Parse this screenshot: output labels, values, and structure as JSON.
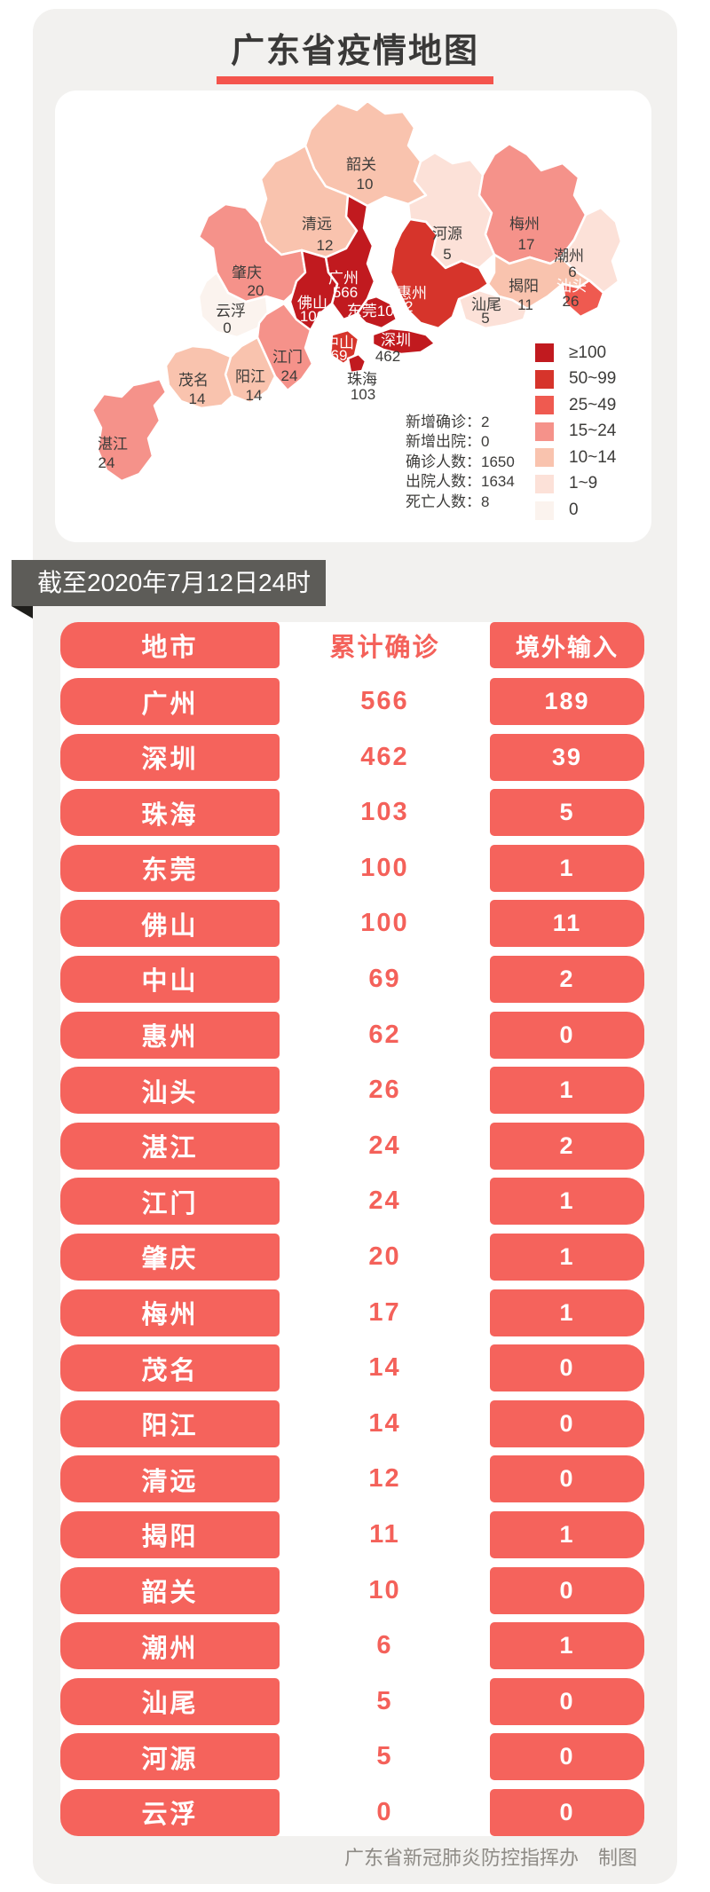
{
  "page": {
    "title": "广东省疫情地图",
    "banner": "截至2020年7月12日24时",
    "footer": "广东省新冠肺炎防控指挥办　制图",
    "accent_color": "#f4544c",
    "banner_color": "#5d5c58",
    "table_red": "#f5635c"
  },
  "map": {
    "palette": {
      "t7": "#c11a1f",
      "t6": "#d6342b",
      "t5": "#ef5a50",
      "t4": "#f5928a",
      "t3": "#f9c3ae",
      "t2": "#fce1d8",
      "t1": "#fbf3ee"
    },
    "legend": [
      {
        "label": "≥100",
        "tier": "t7"
      },
      {
        "label": "50~99",
        "tier": "t6"
      },
      {
        "label": "25~49",
        "tier": "t5"
      },
      {
        "label": "15~24",
        "tier": "t4"
      },
      {
        "label": "10~14",
        "tier": "t3"
      },
      {
        "label": "1~9",
        "tier": "t2"
      },
      {
        "label": "0",
        "tier": "t1"
      }
    ],
    "stats": [
      {
        "label": "新增确诊",
        "value": "2"
      },
      {
        "label": "新增出院",
        "value": "0"
      },
      {
        "label": "确诊人数",
        "value": "1650"
      },
      {
        "label": "出院人数",
        "value": "1634"
      },
      {
        "label": "死亡人数",
        "value": "8"
      }
    ],
    "cities": [
      {
        "id": "shaoguan",
        "name": "韶关",
        "value": "10",
        "tier": "t3",
        "nx": 345,
        "ny": 89,
        "vx": 349,
        "vy": 111,
        "name_white": false,
        "value_white": false
      },
      {
        "id": "qingyuan",
        "name": "清远",
        "value": "12",
        "tier": "t3",
        "nx": 295,
        "ny": 156,
        "vx": 304,
        "vy": 180,
        "name_white": false,
        "value_white": false
      },
      {
        "id": "heyuan",
        "name": "河源",
        "value": "5",
        "tier": "t2",
        "nx": 442,
        "ny": 167,
        "vx": 442,
        "vy": 190,
        "name_white": false,
        "value_white": false
      },
      {
        "id": "meizhou",
        "name": "梅州",
        "value": "17",
        "tier": "t4",
        "nx": 529,
        "ny": 156,
        "vx": 531,
        "vy": 179,
        "name_white": false,
        "value_white": false
      },
      {
        "id": "chaozhou",
        "name": "潮州",
        "value": "6",
        "tier": "t2",
        "nx": 579,
        "ny": 192,
        "vx": 583,
        "vy": 210,
        "name_white": false,
        "value_white": false
      },
      {
        "id": "jieyang",
        "name": "揭阳",
        "value": "11",
        "tier": "t3",
        "nx": 528,
        "ny": 226,
        "vx": 530,
        "vy": 247,
        "name_white": false,
        "value_white": false
      },
      {
        "id": "shantou",
        "name": "汕头",
        "value": "26",
        "tier": "t5",
        "nx": 582,
        "ny": 226,
        "vx": 581,
        "vy": 243,
        "name_white": true,
        "value_white": false
      },
      {
        "id": "shanwei",
        "name": "汕尾",
        "value": "5",
        "tier": "t2",
        "nx": 486,
        "ny": 247,
        "vx": 485,
        "vy": 262,
        "name_white": false,
        "value_white": false
      },
      {
        "id": "huizhou",
        "name": "惠州",
        "value": "62",
        "tier": "t6",
        "nx": 402,
        "ny": 234,
        "vx": 394,
        "vy": 249,
        "name_white": true,
        "value_white": true
      },
      {
        "id": "guangzhou",
        "name": "广州",
        "value": "566",
        "tier": "t7",
        "nx": 325,
        "ny": 217,
        "vx": 327,
        "vy": 233,
        "name_white": true,
        "value_white": true
      },
      {
        "id": "zhaoqing",
        "name": "肇庆",
        "value": "20",
        "tier": "t4",
        "nx": 216,
        "ny": 211,
        "vx": 226,
        "vy": 231,
        "name_white": false,
        "value_white": false
      },
      {
        "id": "yunfu",
        "name": "云浮",
        "value": "0",
        "tier": "t1",
        "nx": 198,
        "ny": 254,
        "vx": 194,
        "vy": 273,
        "name_white": false,
        "value_white": false
      },
      {
        "id": "foshan",
        "name": "佛山",
        "value": "100",
        "tier": "t7",
        "nx": 290,
        "ny": 245,
        "vx": 290,
        "vy": 260,
        "name_white": true,
        "value_white": true
      },
      {
        "id": "dongguan",
        "name": "东莞100",
        "value": "",
        "tier": "t7",
        "nx": 360,
        "ny": 254,
        "vx": 0,
        "vy": 0,
        "name_white": true,
        "value_white": true,
        "single_line": true
      },
      {
        "id": "zhongshan",
        "name": "中山",
        "value": "69",
        "tier": "t6",
        "nx": 320,
        "ny": 290,
        "vx": 320,
        "vy": 304,
        "name_white": true,
        "value_white": true
      },
      {
        "id": "shenzhen",
        "name": "深圳",
        "value": "462",
        "tier": "t7",
        "nx": 384,
        "ny": 287,
        "vx": 375,
        "vy": 305,
        "name_white": true,
        "value_white": false
      },
      {
        "id": "zhuhai",
        "name": "珠海",
        "value": "103",
        "tier": "t7",
        "nx": 346,
        "ny": 331,
        "vx": 347,
        "vy": 348,
        "name_white": false,
        "value_white": false
      },
      {
        "id": "jiangmen",
        "name": "江门",
        "value": "24",
        "tier": "t4",
        "nx": 262,
        "ny": 306,
        "vx": 264,
        "vy": 327,
        "name_white": false,
        "value_white": false
      },
      {
        "id": "yangjiang",
        "name": "阳江",
        "value": "14",
        "tier": "t3",
        "nx": 220,
        "ny": 328,
        "vx": 224,
        "vy": 349,
        "name_white": false,
        "value_white": false
      },
      {
        "id": "maoming",
        "name": "茂名",
        "value": "14",
        "tier": "t3",
        "nx": 156,
        "ny": 332,
        "vx": 160,
        "vy": 353,
        "name_white": false,
        "value_white": false
      },
      {
        "id": "zhanjiang",
        "name": "湛江",
        "value": "24",
        "tier": "t4",
        "nx": 65,
        "ny": 404,
        "vx": 58,
        "vy": 425,
        "name_white": false,
        "value_white": false
      }
    ]
  },
  "table": {
    "headers": [
      "地市",
      "累计确诊",
      "境外输入"
    ],
    "rows": [
      [
        "广州",
        "566",
        "189"
      ],
      [
        "深圳",
        "462",
        "39"
      ],
      [
        "珠海",
        "103",
        "5"
      ],
      [
        "东莞",
        "100",
        "1"
      ],
      [
        "佛山",
        "100",
        "11"
      ],
      [
        "中山",
        "69",
        "2"
      ],
      [
        "惠州",
        "62",
        "0"
      ],
      [
        "汕头",
        "26",
        "1"
      ],
      [
        "湛江",
        "24",
        "2"
      ],
      [
        "江门",
        "24",
        "1"
      ],
      [
        "肇庆",
        "20",
        "1"
      ],
      [
        "梅州",
        "17",
        "1"
      ],
      [
        "茂名",
        "14",
        "0"
      ],
      [
        "阳江",
        "14",
        "0"
      ],
      [
        "清远",
        "12",
        "0"
      ],
      [
        "揭阳",
        "11",
        "1"
      ],
      [
        "韶关",
        "10",
        "0"
      ],
      [
        "潮州",
        "6",
        "1"
      ],
      [
        "汕尾",
        "5",
        "0"
      ],
      [
        "河源",
        "5",
        "0"
      ],
      [
        "云浮",
        "0",
        "0"
      ]
    ]
  },
  "chart_data": {
    "type": "table",
    "title": "广东省疫情地图",
    "columns": [
      "地市",
      "累计确诊",
      "境外输入"
    ],
    "rows": [
      [
        "广州",
        566,
        189
      ],
      [
        "深圳",
        462,
        39
      ],
      [
        "珠海",
        103,
        5
      ],
      [
        "东莞",
        100,
        1
      ],
      [
        "佛山",
        100,
        11
      ],
      [
        "中山",
        69,
        2
      ],
      [
        "惠州",
        62,
        0
      ],
      [
        "汕头",
        26,
        1
      ],
      [
        "湛江",
        24,
        2
      ],
      [
        "江门",
        24,
        1
      ],
      [
        "肇庆",
        20,
        1
      ],
      [
        "梅州",
        17,
        1
      ],
      [
        "茂名",
        14,
        0
      ],
      [
        "阳江",
        14,
        0
      ],
      [
        "清远",
        12,
        0
      ],
      [
        "揭阳",
        11,
        1
      ],
      [
        "韶关",
        10,
        0
      ],
      [
        "潮州",
        6,
        1
      ],
      [
        "汕尾",
        5,
        0
      ],
      [
        "河源",
        5,
        0
      ],
      [
        "云浮",
        0,
        0
      ]
    ],
    "legend_bins": [
      "≥100",
      "50~99",
      "25~49",
      "15~24",
      "10~14",
      "1~9",
      "0"
    ],
    "totals": {
      "新增确诊": 2,
      "新增出院": 0,
      "确诊人数": 1650,
      "出院人数": 1634,
      "死亡人数": 8
    }
  }
}
